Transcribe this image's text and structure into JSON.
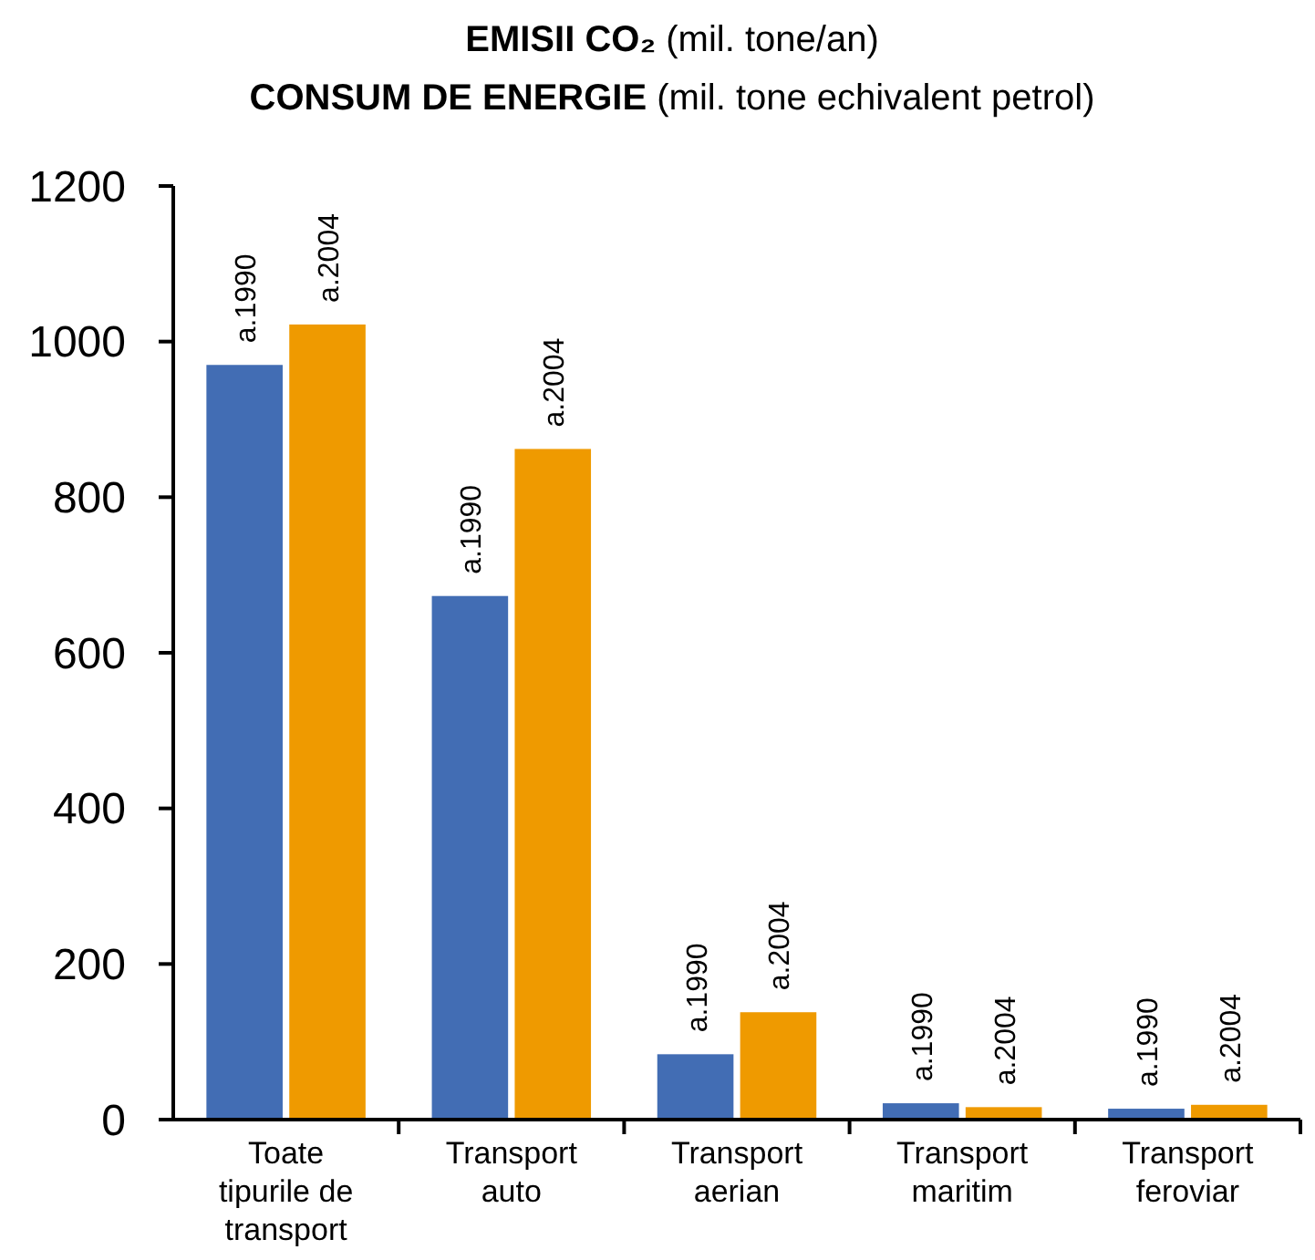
{
  "chart_data": {
    "type": "bar",
    "title": "EMISII CO₂ (mil. tone/an)",
    "subtitle": "CONSUM DE ENERGIE (mil. tone echivalent petrol)",
    "categories": [
      "Toate tipurile de transport",
      "Transport auto",
      "Transport aerian",
      "Transport maritim",
      "Transport feroviar"
    ],
    "series": [
      {
        "name": "a.1990",
        "color": "#426db4",
        "values": [
          970,
          673,
          84,
          21,
          14
        ]
      },
      {
        "name": "a.2004",
        "color": "#ef9a00",
        "values": [
          1022,
          862,
          138,
          16,
          19
        ]
      }
    ],
    "ylim": [
      0,
      1200
    ],
    "yticks": [
      0,
      200,
      400,
      600,
      800,
      1000,
      1200
    ],
    "grid": false
  }
}
